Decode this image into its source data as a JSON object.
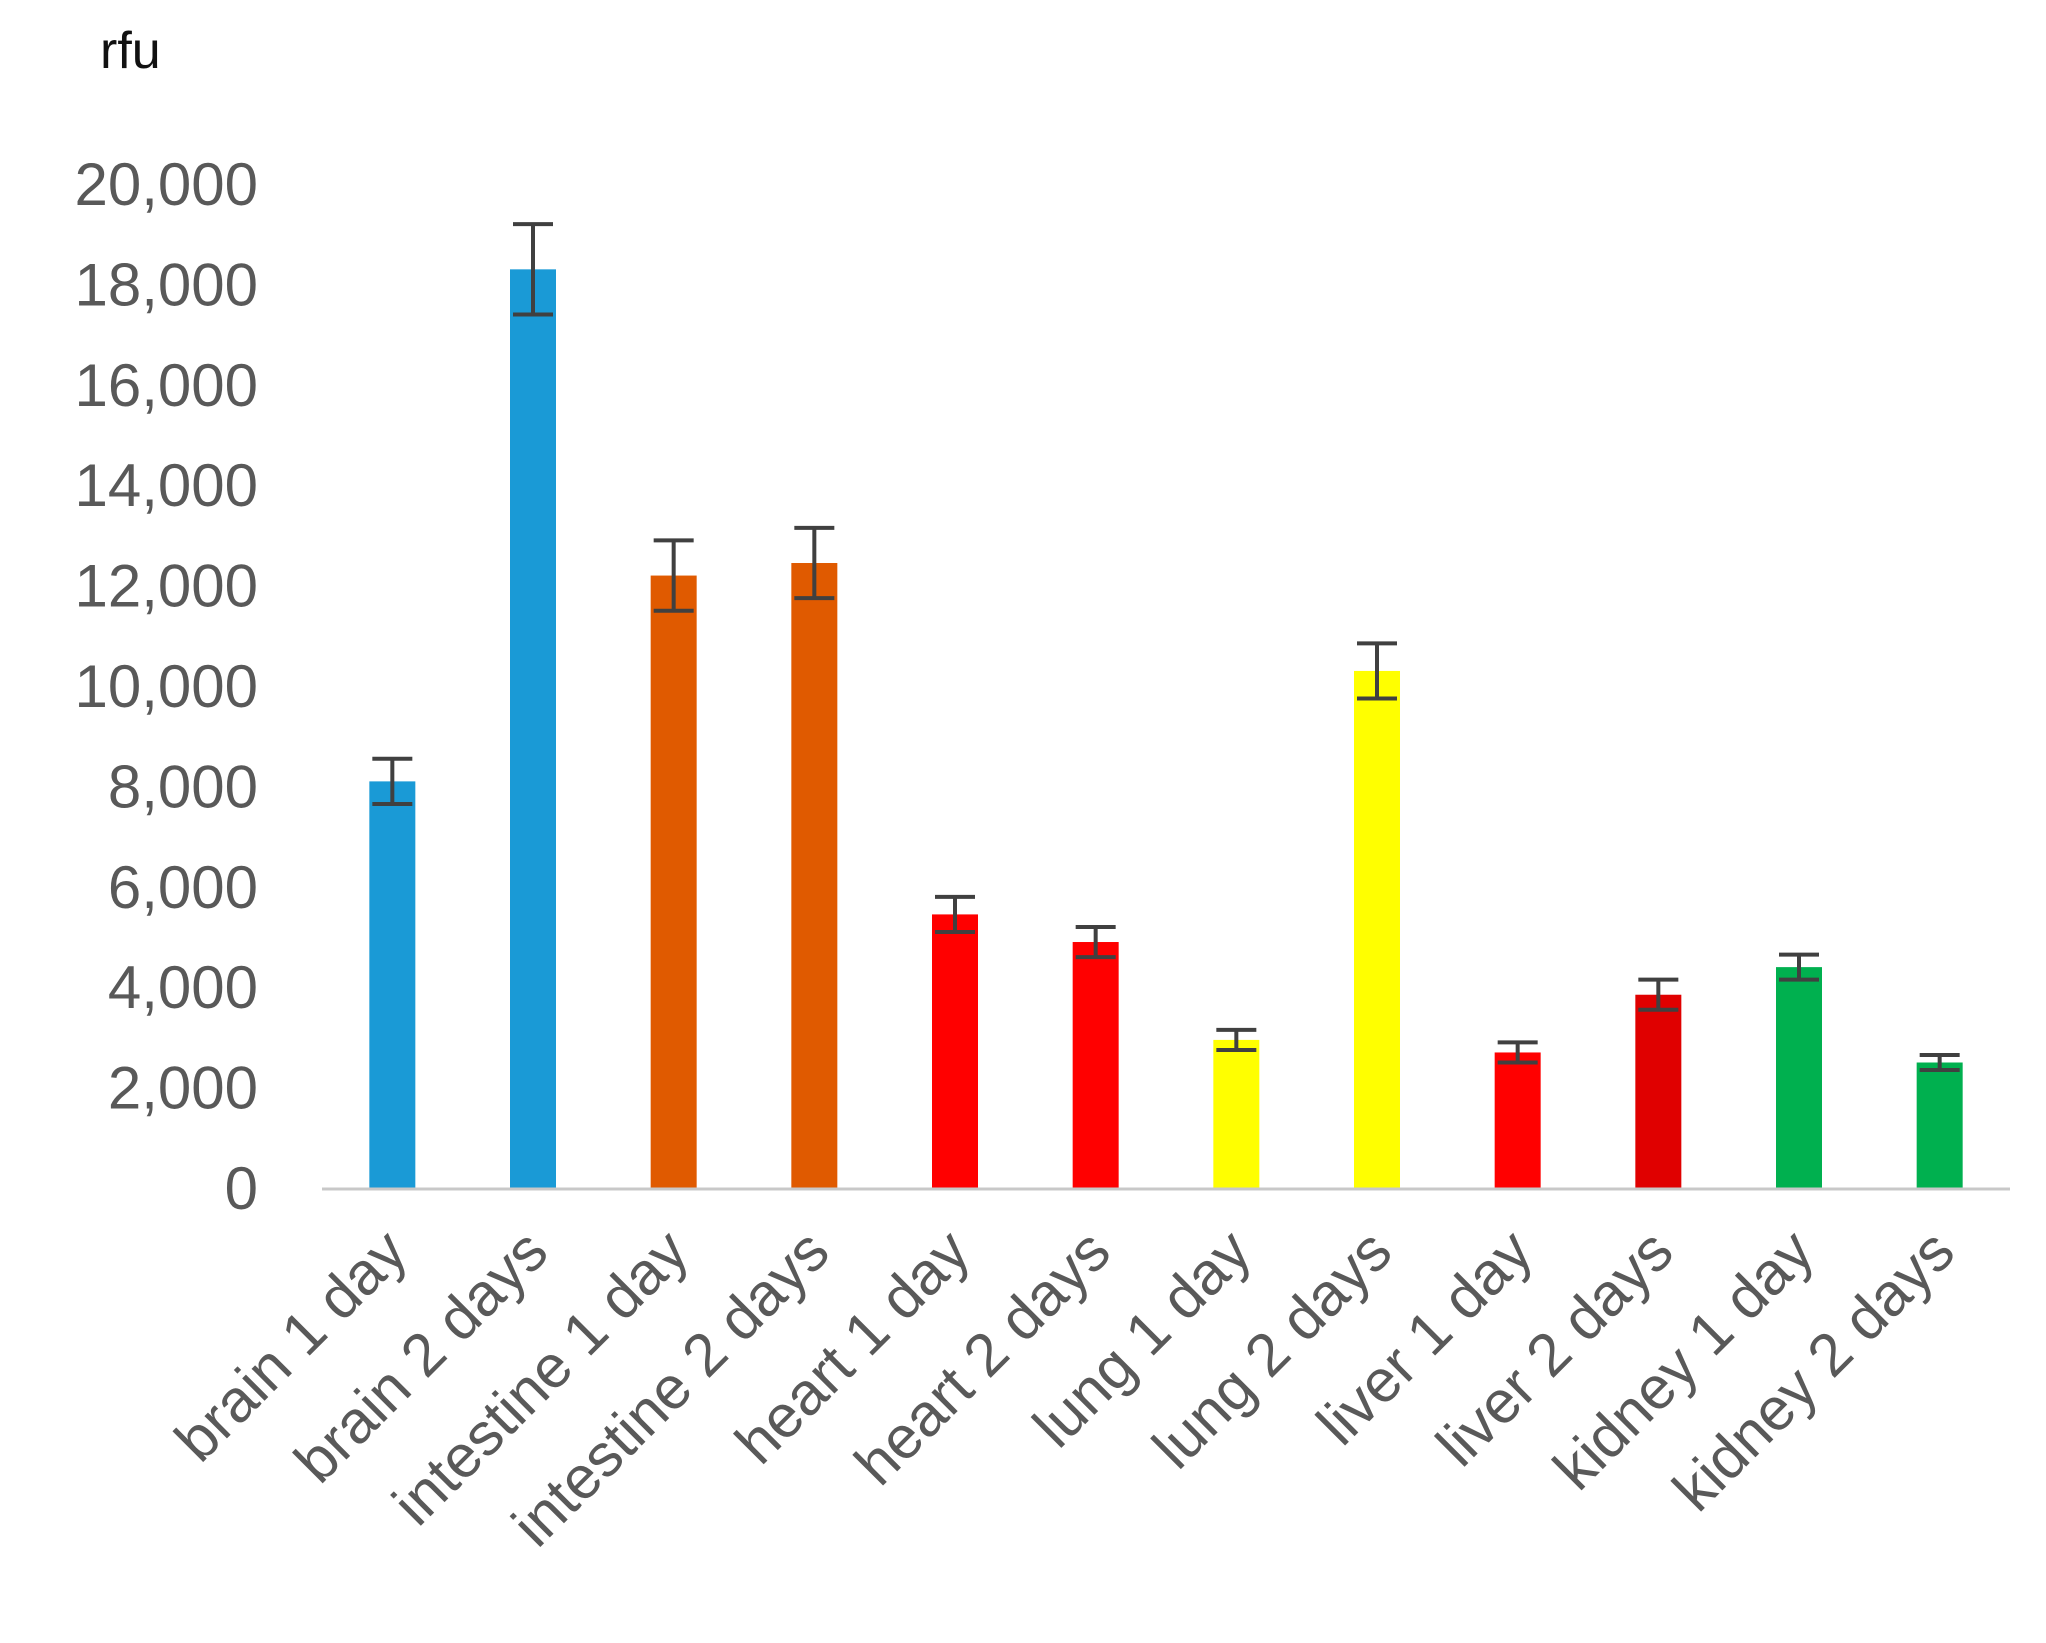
{
  "chart_data": {
    "type": "bar",
    "ylabel": "rfu",
    "xlabel": "",
    "ylim": [
      0,
      20000
    ],
    "yticks": [
      0,
      2000,
      4000,
      6000,
      8000,
      10000,
      12000,
      14000,
      16000,
      18000,
      20000
    ],
    "ytick_labels": [
      "0",
      "2,000",
      "4,000",
      "6,000",
      "8,000",
      "10,000",
      "12,000",
      "14,000",
      "16,000",
      "18,000",
      "20,000"
    ],
    "grid": false,
    "legend": "none",
    "categories": [
      "brain 1 day",
      "brain 2 days",
      "intestine 1 day",
      "intestine 2 days",
      "heart 1 day",
      "heart 2 days",
      "lung 1 day",
      "lung 2 days",
      "liver 1 day",
      "liver 2 days",
      "kidney 1 day",
      "kidney 2 days"
    ],
    "values": [
      8100,
      18300,
      12200,
      12450,
      5450,
      4900,
      2950,
      10300,
      2700,
      3850,
      4400,
      2500
    ],
    "errors": [
      450,
      900,
      700,
      700,
      350,
      300,
      200,
      550,
      200,
      300,
      250,
      150
    ],
    "colors": [
      "#1a9ad6",
      "#1a9ad6",
      "#e05a00",
      "#e05a00",
      "#ff0000",
      "#ff0000",
      "#ffff00",
      "#ffff00",
      "#ff0000",
      "#e00000",
      "#00b04f",
      "#00b04f"
    ]
  }
}
